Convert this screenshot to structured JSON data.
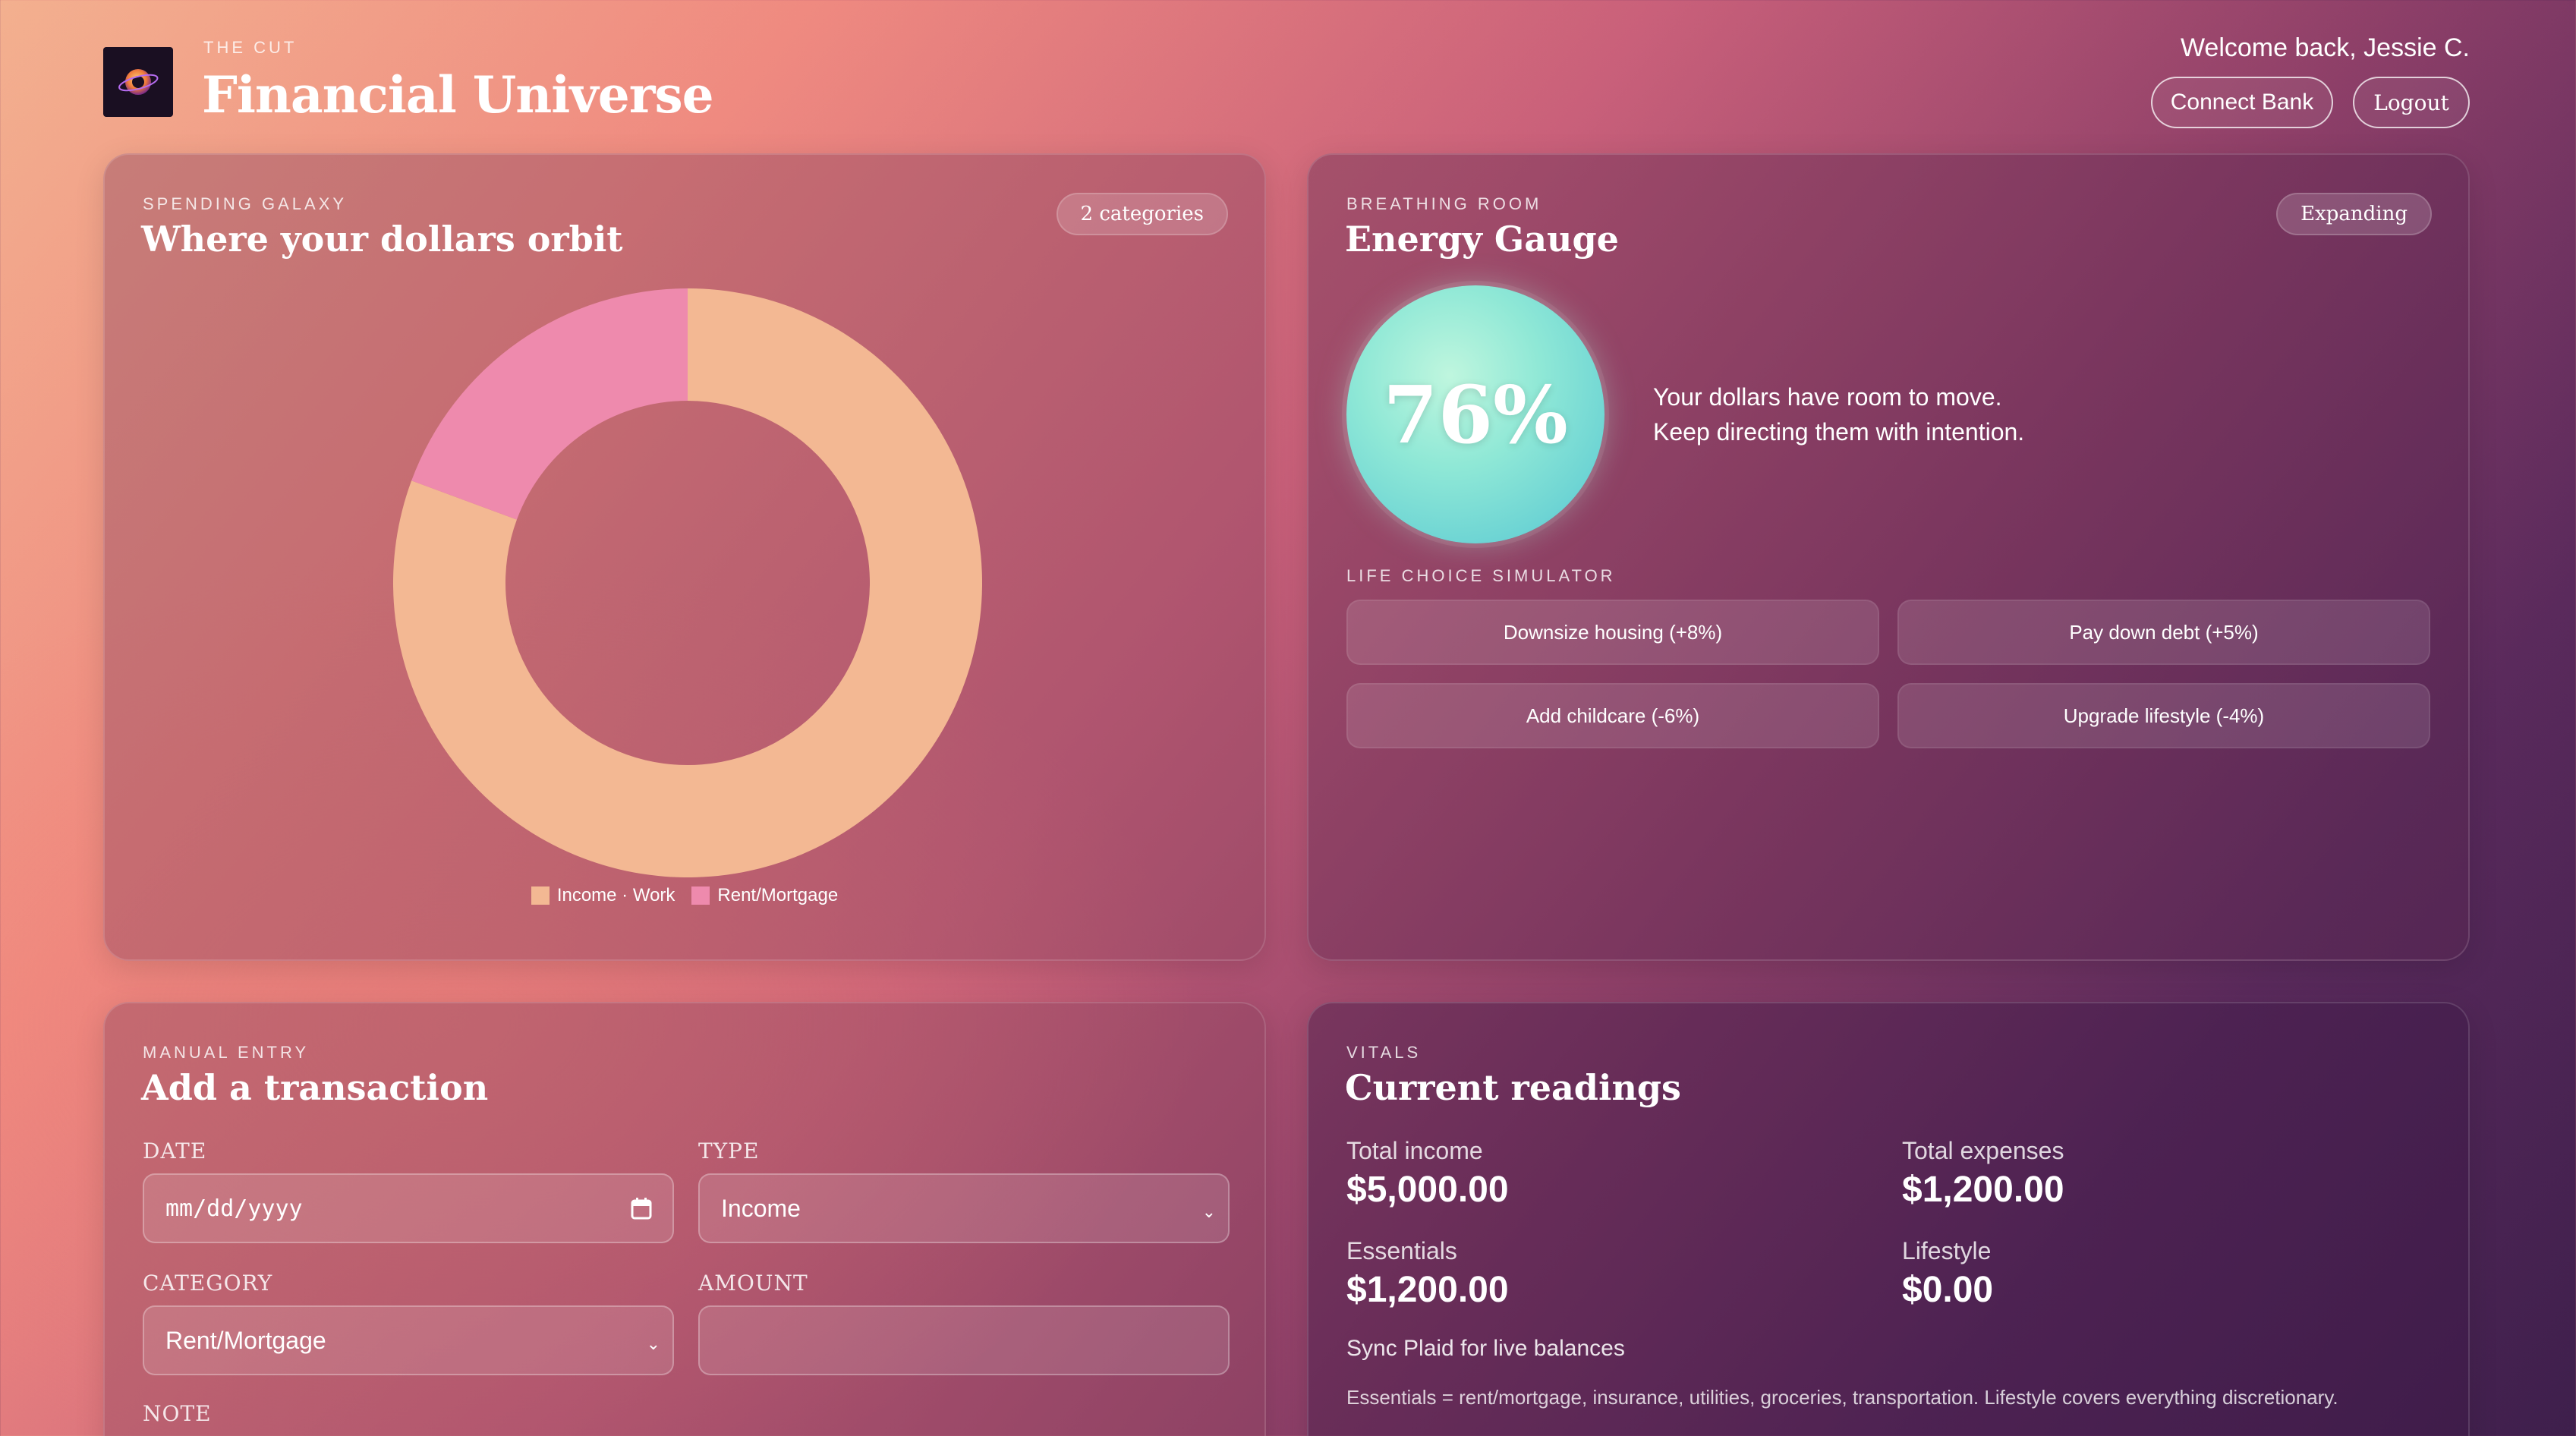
{
  "header": {
    "kicker": "THE CUT",
    "title": "Financial Universe",
    "welcome": "Welcome back, Jessie C.",
    "connect_label": "Connect Bank",
    "logout_label": "Logout"
  },
  "spending": {
    "kicker": "SPENDING GALAXY",
    "title": "Where your dollars orbit",
    "badge": "2 categories"
  },
  "chart_data": {
    "type": "pie",
    "categories": [
      "Income · Work",
      "Rent/Mortgage"
    ],
    "values": [
      5000,
      1200
    ],
    "colors": [
      "#f3b893",
      "#ee8aad"
    ],
    "donut": true,
    "legend": "bottom"
  },
  "energy": {
    "kicker": "BREATHING ROOM",
    "title": "Energy Gauge",
    "badge": "Expanding",
    "value_label": "76%",
    "value": 76,
    "message_line1": "Your dollars have room to move.",
    "message_line2": "Keep directing them with intention.",
    "simulator_kicker": "LIFE CHOICE SIMULATOR",
    "options": [
      "Downsize housing (+8%)",
      "Pay down debt (+5%)",
      "Add childcare (-6%)",
      "Upgrade lifestyle (-4%)"
    ]
  },
  "entry": {
    "kicker": "MANUAL ENTRY",
    "title": "Add a transaction",
    "date_label": "DATE",
    "date_placeholder": "mm/dd/yyyy",
    "type_label": "TYPE",
    "type_value": "Income",
    "category_label": "CATEGORY",
    "category_value": "Rent/Mortgage",
    "amount_label": "AMOUNT",
    "amount_value": "",
    "note_label": "NOTE"
  },
  "vitals": {
    "kicker": "VITALS",
    "title": "Current readings",
    "total_income_label": "Total income",
    "total_income": "$5,000.00",
    "total_expenses_label": "Total expenses",
    "total_expenses": "$1,200.00",
    "essentials_label": "Essentials",
    "essentials": "$1,200.00",
    "lifestyle_label": "Lifestyle",
    "lifestyle": "$0.00",
    "sync_note": "Sync Plaid for live balances",
    "footnote": "Essentials = rent/mortgage, insurance, utilities, groceries, transportation. Lifestyle covers everything discretionary."
  },
  "icons": {
    "logo": "orbit-logo-icon",
    "date": "calendar-icon",
    "select": "chevron-down-icon"
  }
}
